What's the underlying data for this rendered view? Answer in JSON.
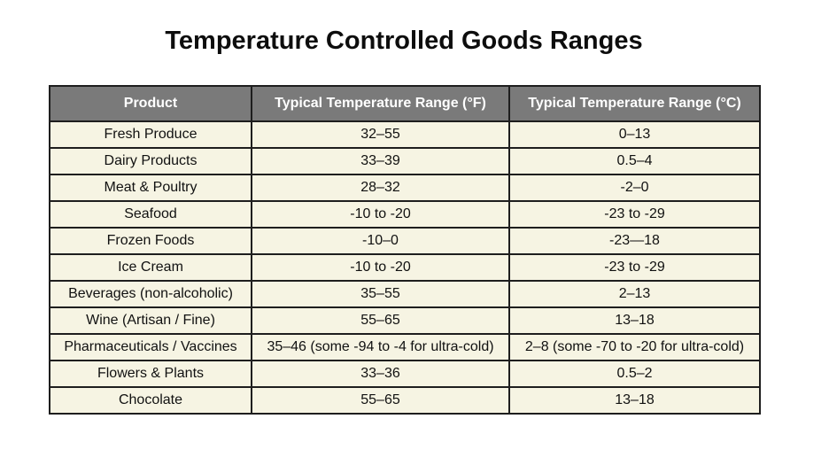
{
  "title": "Temperature Controlled Goods Ranges",
  "colors": {
    "header_bg": "#7a7a7a",
    "header_text": "#ffffff",
    "cell_bg": "#f6f4e3",
    "border": "#1e1e1e"
  },
  "chart_data": {
    "type": "table",
    "title": "Temperature Controlled Goods Ranges",
    "columns": [
      "Product",
      "Typical Temperature Range (°F)",
      "Typical Temperature Range (°C)"
    ],
    "rows": [
      [
        "Fresh Produce",
        "32–55",
        "0–13"
      ],
      [
        "Dairy Products",
        "33–39",
        "0.5–4"
      ],
      [
        "Meat & Poultry",
        "28–32",
        "-2–0"
      ],
      [
        "Seafood",
        "-10 to -20",
        "-23 to -29"
      ],
      [
        "Frozen Foods",
        "-10–0",
        "-23—18"
      ],
      [
        "Ice Cream",
        "-10 to -20",
        "-23 to -29"
      ],
      [
        "Beverages (non-alcoholic)",
        "35–55",
        "2–13"
      ],
      [
        "Wine (Artisan / Fine)",
        "55–65",
        "13–18"
      ],
      [
        "Pharmaceuticals / Vaccines",
        "35–46 (some -94 to -4 for ultra-cold)",
        "2–8 (some -70 to -20 for ultra-cold)"
      ],
      [
        "Flowers & Plants",
        "33–36",
        "0.5–2"
      ],
      [
        "Chocolate",
        "55–65",
        "13–18"
      ]
    ]
  }
}
